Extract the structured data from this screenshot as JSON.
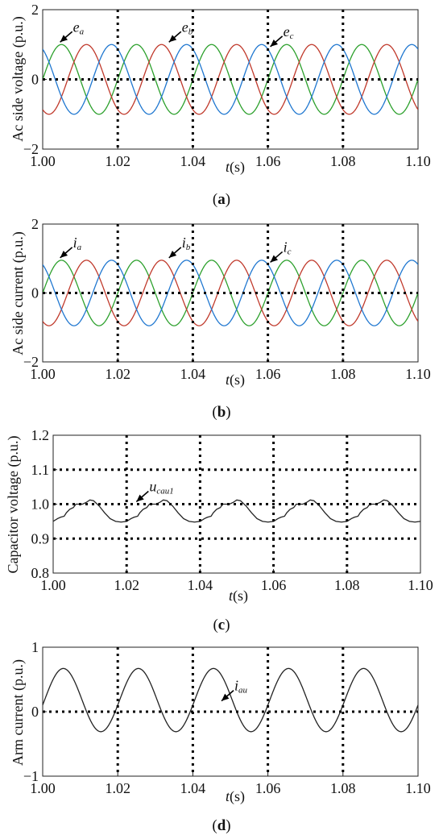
{
  "chart_data": [
    {
      "type": "line",
      "ylabel": "Ac side voltage  (p.u.)",
      "xlabel": "t(s)",
      "caption": "(a)",
      "xlim": [
        1.0,
        1.1
      ],
      "ylim": [
        -2,
        2
      ],
      "x_ticks": [
        "1.00",
        "1.02",
        "1.04",
        "1.06",
        "1.08",
        "1.10"
      ],
      "y_ticks": [
        "2",
        "0",
        "−2"
      ],
      "grid": "dotted at x = 1.02, 1.04, 1.06, 1.08 and y = 0",
      "signal": {
        "kind": "three-phase sinusoid",
        "amplitude": 1.0,
        "period_s": 0.02,
        "phase_a_peak_s": 1.005,
        "phase_b_shift_deg": -120,
        "phase_c_shift_deg": 120
      },
      "series": [
        {
          "name": "e_a",
          "color": "#2ca02c"
        },
        {
          "name": "e_b",
          "color": "#c0392b"
        },
        {
          "name": "e_c",
          "color": "#1f77d0"
        }
      ],
      "annotations": [
        {
          "base": "e",
          "sub": "a",
          "x": 1.004,
          "y": 1.0
        },
        {
          "base": "e",
          "sub": "b",
          "x": 1.033,
          "y": 1.0
        },
        {
          "base": "e",
          "sub": "c",
          "x": 1.06,
          "y": 0.87
        }
      ]
    },
    {
      "type": "line",
      "ylabel": "Ac side  current  (p.u.)",
      "xlabel": "t(s)",
      "caption": "(b)",
      "xlim": [
        1.0,
        1.1
      ],
      "ylim": [
        -2,
        2
      ],
      "x_ticks": [
        "1.00",
        "1.02",
        "1.04",
        "1.06",
        "1.08",
        "1.10"
      ],
      "y_ticks": [
        "2",
        "0",
        "−2"
      ],
      "grid": "dotted at x = 1.02, 1.04, 1.06, 1.08 and y = 0",
      "signal": {
        "kind": "three-phase sinusoid",
        "amplitude": 0.95,
        "period_s": 0.02,
        "phase_a_peak_s": 1.005,
        "phase_b_shift_deg": -120,
        "phase_c_shift_deg": 120
      },
      "series": [
        {
          "name": "i_a",
          "color": "#2ca02c"
        },
        {
          "name": "i_b",
          "color": "#c0392b"
        },
        {
          "name": "i_c",
          "color": "#1f77d0"
        }
      ],
      "annotations": [
        {
          "base": "i",
          "sub": "a",
          "x": 1.004,
          "y": 0.95
        },
        {
          "base": "i",
          "sub": "b",
          "x": 1.033,
          "y": 0.95
        },
        {
          "base": "i",
          "sub": "c",
          "x": 1.06,
          "y": 0.82
        }
      ]
    },
    {
      "type": "line",
      "ylabel": "Capacitor voltage (p.u.)",
      "xlabel": "t(s)",
      "caption": "(c)",
      "xlim": [
        1.0,
        1.1
      ],
      "ylim": [
        0.8,
        1.2
      ],
      "x_ticks": [
        "1.00",
        "1.02",
        "1.04",
        "1.06",
        "1.08",
        "1.10"
      ],
      "y_ticks": [
        "1.2",
        "1.1",
        "1.0",
        "0.9",
        "0.8"
      ],
      "grid": "dotted at x = 1.02, 1.04, 1.06, 1.08 and y = 0.9, 1.0, 1.1",
      "period_s": 0.02,
      "cycle_points": [
        [
          0.0,
          0.95
        ],
        [
          0.0012,
          0.958
        ],
        [
          0.002,
          0.962
        ],
        [
          0.003,
          0.965
        ],
        [
          0.0036,
          0.975
        ],
        [
          0.0045,
          0.985
        ],
        [
          0.0055,
          0.99
        ],
        [
          0.0062,
          1.0
        ],
        [
          0.008,
          1.0
        ],
        [
          0.009,
          1.005
        ],
        [
          0.01,
          1.012
        ],
        [
          0.011,
          1.01
        ],
        [
          0.0125,
          0.995
        ],
        [
          0.014,
          0.975
        ],
        [
          0.0155,
          0.958
        ],
        [
          0.017,
          0.95
        ],
        [
          0.0185,
          0.948
        ],
        [
          0.02,
          0.95
        ]
      ],
      "series": [
        {
          "name": "u_cau1",
          "color": "#222222"
        }
      ],
      "annotations": [
        {
          "base": "u",
          "sub": "cau1",
          "x": 1.022,
          "y": 1.0
        }
      ]
    },
    {
      "type": "line",
      "ylabel": "Arm current  (p.u.)",
      "xlabel": "t(s)",
      "caption": "(d)",
      "xlim": [
        1.0,
        1.1
      ],
      "ylim": [
        -1,
        1
      ],
      "x_ticks": [
        "1.00",
        "1.02",
        "1.04",
        "1.06",
        "1.08",
        "1.10"
      ],
      "y_ticks": [
        "1",
        "0",
        "−1"
      ],
      "grid": "dotted at x = 1.02, 1.04, 1.06, 1.08 and y = 0",
      "signal": {
        "kind": "dc offset plus sinusoid",
        "offset": 0.18,
        "amplitude": 0.49,
        "period_s": 0.02,
        "peak_s": 1.0055
      },
      "series": [
        {
          "name": "i_au",
          "color": "#222222"
        }
      ],
      "annotations": [
        {
          "base": "i",
          "sub": "au",
          "x": 1.047,
          "y": 0.13
        }
      ]
    }
  ]
}
